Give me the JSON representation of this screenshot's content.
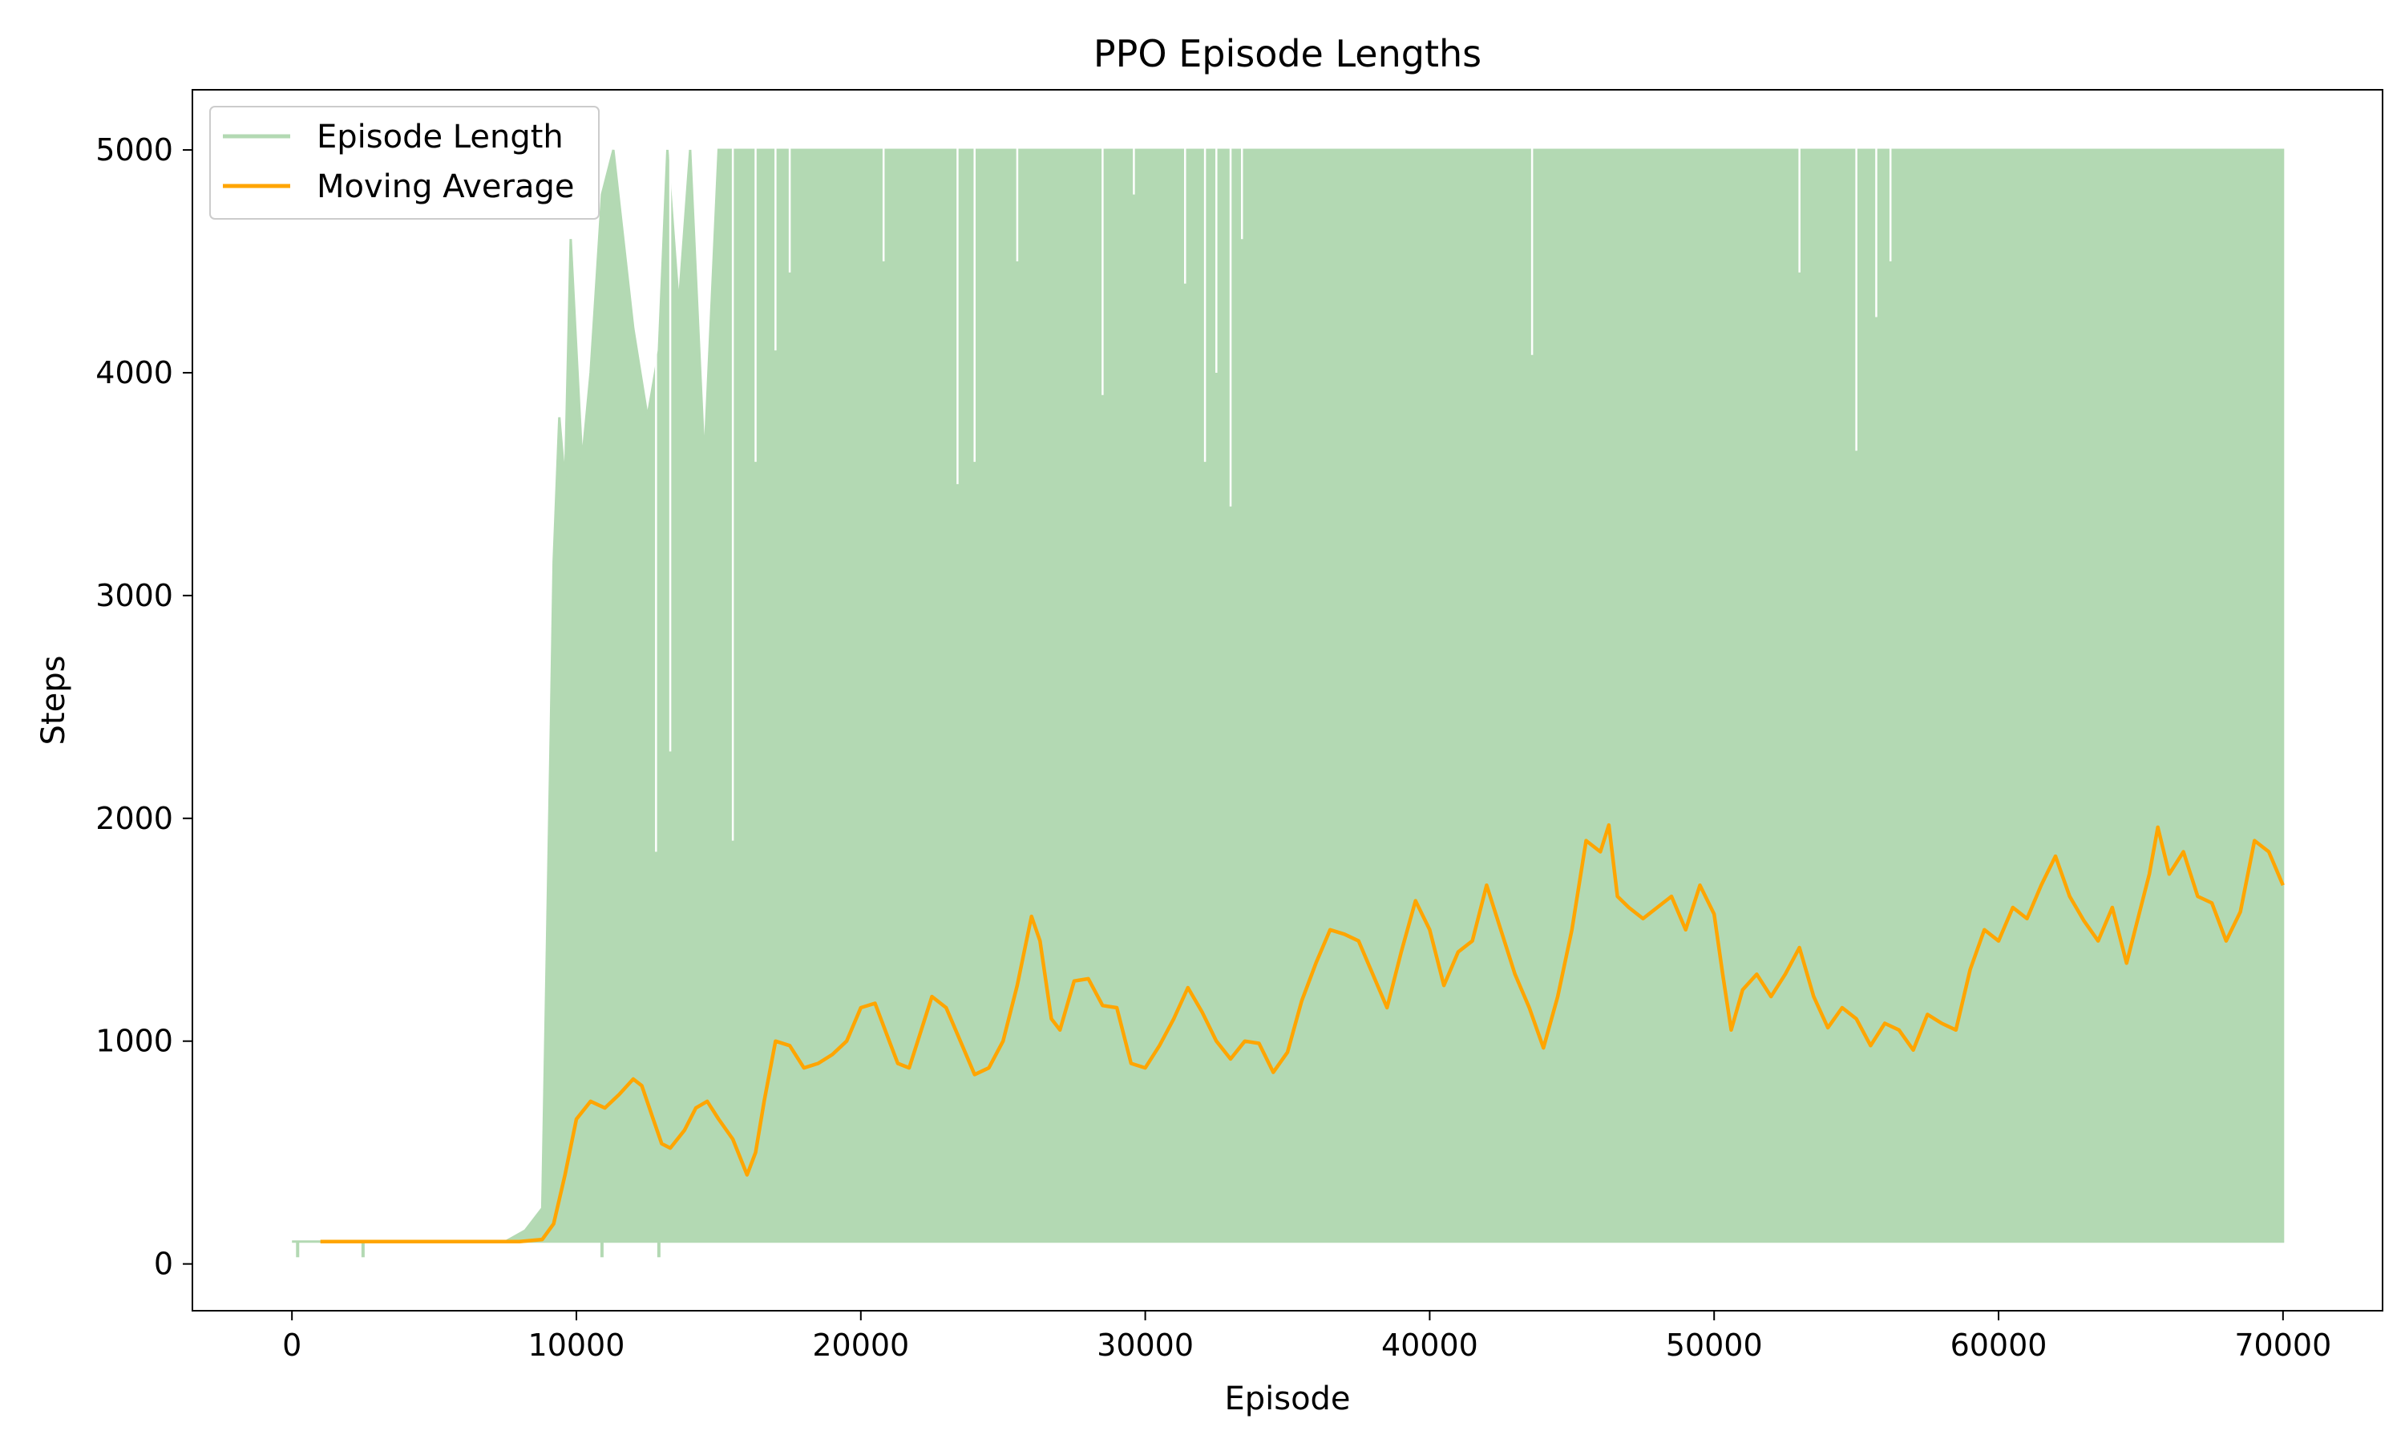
{
  "chart_data": {
    "type": "line",
    "title": "PPO Episode Lengths",
    "xlabel": "Episode",
    "ylabel": "Steps",
    "xlim": [
      -3500,
      73500
    ],
    "ylim": [
      -210,
      5270
    ],
    "x_ticks": [
      0,
      10000,
      20000,
      30000,
      40000,
      50000,
      60000,
      70000
    ],
    "y_ticks": [
      0,
      1000,
      2000,
      3000,
      4000,
      5000
    ],
    "grid": false,
    "legend_position": "top-left",
    "colors": {
      "episode_length": "#b3d9b3",
      "moving_average": "#ffa500"
    },
    "series": [
      {
        "name": "Episode Length",
        "style": "thin-line-dense",
        "note_envelope": "upper/lower envelope of raw per-episode values",
        "upper": [
          [
            0,
            100
          ],
          [
            7500,
            100
          ],
          [
            8200,
            150
          ],
          [
            8800,
            250
          ],
          [
            9100,
            2400
          ],
          [
            9200,
            3150
          ],
          [
            9400,
            3800
          ],
          [
            9600,
            3500
          ],
          [
            9800,
            4600
          ],
          [
            10200,
            3600
          ],
          [
            10500,
            4000
          ],
          [
            10900,
            4800
          ],
          [
            11300,
            5000
          ],
          [
            12000,
            4200
          ],
          [
            12500,
            3800
          ],
          [
            12900,
            4100
          ],
          [
            13200,
            5000
          ],
          [
            13600,
            4300
          ],
          [
            14000,
            5000
          ],
          [
            14500,
            3600
          ],
          [
            15000,
            5000
          ],
          [
            70000,
            5000
          ]
        ],
        "lower": [
          [
            0,
            100
          ],
          [
            7500,
            100
          ],
          [
            70000,
            100
          ]
        ],
        "spikes_down": [
          [
            200,
            30
          ],
          [
            2500,
            30
          ],
          [
            10900,
            30
          ],
          [
            12900,
            30
          ]
        ],
        "gaps_top": [
          [
            12800,
            1850
          ],
          [
            13300,
            2300
          ],
          [
            15500,
            1900
          ],
          [
            16300,
            3600
          ],
          [
            17000,
            4100
          ],
          [
            17500,
            4450
          ],
          [
            20800,
            4500
          ],
          [
            23400,
            3500
          ],
          [
            24000,
            3600
          ],
          [
            25500,
            4500
          ],
          [
            28500,
            3900
          ],
          [
            29600,
            4800
          ],
          [
            31400,
            4400
          ],
          [
            32100,
            3600
          ],
          [
            32500,
            4000
          ],
          [
            33000,
            3400
          ],
          [
            33400,
            4600
          ],
          [
            43600,
            4080
          ],
          [
            53000,
            4450
          ],
          [
            55000,
            3650
          ],
          [
            55700,
            4250
          ],
          [
            56200,
            4500
          ]
        ]
      },
      {
        "name": "Moving Average",
        "style": "line",
        "points": [
          [
            1000,
            100
          ],
          [
            2000,
            100
          ],
          [
            4000,
            100
          ],
          [
            6000,
            100
          ],
          [
            8000,
            100
          ],
          [
            8800,
            110
          ],
          [
            9200,
            180
          ],
          [
            9600,
            400
          ],
          [
            10000,
            650
          ],
          [
            10500,
            730
          ],
          [
            11000,
            700
          ],
          [
            11500,
            760
          ],
          [
            12000,
            830
          ],
          [
            12300,
            800
          ],
          [
            12700,
            650
          ],
          [
            13000,
            540
          ],
          [
            13300,
            520
          ],
          [
            13800,
            600
          ],
          [
            14200,
            700
          ],
          [
            14600,
            730
          ],
          [
            15000,
            650
          ],
          [
            15500,
            560
          ],
          [
            16000,
            400
          ],
          [
            16300,
            500
          ],
          [
            16600,
            730
          ],
          [
            17000,
            1000
          ],
          [
            17500,
            980
          ],
          [
            18000,
            880
          ],
          [
            18500,
            900
          ],
          [
            19000,
            940
          ],
          [
            19500,
            1000
          ],
          [
            20000,
            1150
          ],
          [
            20500,
            1170
          ],
          [
            21000,
            1000
          ],
          [
            21300,
            900
          ],
          [
            21700,
            880
          ],
          [
            22000,
            1000
          ],
          [
            22500,
            1200
          ],
          [
            23000,
            1150
          ],
          [
            23500,
            1000
          ],
          [
            24000,
            850
          ],
          [
            24500,
            880
          ],
          [
            25000,
            1000
          ],
          [
            25500,
            1250
          ],
          [
            26000,
            1560
          ],
          [
            26300,
            1450
          ],
          [
            26700,
            1100
          ],
          [
            27000,
            1050
          ],
          [
            27500,
            1270
          ],
          [
            28000,
            1280
          ],
          [
            28500,
            1160
          ],
          [
            29000,
            1150
          ],
          [
            29500,
            900
          ],
          [
            30000,
            880
          ],
          [
            30500,
            980
          ],
          [
            31000,
            1100
          ],
          [
            31500,
            1240
          ],
          [
            32000,
            1130
          ],
          [
            32500,
            1000
          ],
          [
            33000,
            920
          ],
          [
            33500,
            1000
          ],
          [
            34000,
            990
          ],
          [
            34500,
            860
          ],
          [
            35000,
            950
          ],
          [
            35500,
            1180
          ],
          [
            36000,
            1350
          ],
          [
            36500,
            1500
          ],
          [
            37000,
            1480
          ],
          [
            37500,
            1450
          ],
          [
            38000,
            1300
          ],
          [
            38500,
            1150
          ],
          [
            39000,
            1400
          ],
          [
            39500,
            1630
          ],
          [
            40000,
            1500
          ],
          [
            40500,
            1250
          ],
          [
            41000,
            1400
          ],
          [
            41500,
            1450
          ],
          [
            42000,
            1700
          ],
          [
            42500,
            1500
          ],
          [
            43000,
            1300
          ],
          [
            43500,
            1150
          ],
          [
            44000,
            970
          ],
          [
            44500,
            1200
          ],
          [
            45000,
            1500
          ],
          [
            45500,
            1900
          ],
          [
            46000,
            1850
          ],
          [
            46300,
            1970
          ],
          [
            46600,
            1650
          ],
          [
            47000,
            1600
          ],
          [
            47500,
            1550
          ],
          [
            48000,
            1600
          ],
          [
            48500,
            1650
          ],
          [
            49000,
            1500
          ],
          [
            49500,
            1700
          ],
          [
            50000,
            1570
          ],
          [
            50300,
            1300
          ],
          [
            50600,
            1050
          ],
          [
            51000,
            1230
          ],
          [
            51500,
            1300
          ],
          [
            52000,
            1200
          ],
          [
            52500,
            1300
          ],
          [
            53000,
            1420
          ],
          [
            53500,
            1200
          ],
          [
            54000,
            1060
          ],
          [
            54500,
            1150
          ],
          [
            55000,
            1100
          ],
          [
            55500,
            980
          ],
          [
            56000,
            1080
          ],
          [
            56500,
            1050
          ],
          [
            57000,
            960
          ],
          [
            57500,
            1120
          ],
          [
            58000,
            1080
          ],
          [
            58500,
            1050
          ],
          [
            59000,
            1320
          ],
          [
            59500,
            1500
          ],
          [
            60000,
            1450
          ],
          [
            60500,
            1600
          ],
          [
            61000,
            1550
          ],
          [
            61500,
            1700
          ],
          [
            62000,
            1830
          ],
          [
            62500,
            1650
          ],
          [
            63000,
            1540
          ],
          [
            63500,
            1450
          ],
          [
            64000,
            1600
          ],
          [
            64500,
            1350
          ],
          [
            65000,
            1600
          ],
          [
            65300,
            1750
          ],
          [
            65600,
            1960
          ],
          [
            66000,
            1750
          ],
          [
            66500,
            1850
          ],
          [
            67000,
            1650
          ],
          [
            67500,
            1620
          ],
          [
            68000,
            1450
          ],
          [
            68500,
            1580
          ],
          [
            69000,
            1900
          ],
          [
            69500,
            1850
          ],
          [
            70000,
            1700
          ]
        ]
      }
    ]
  }
}
